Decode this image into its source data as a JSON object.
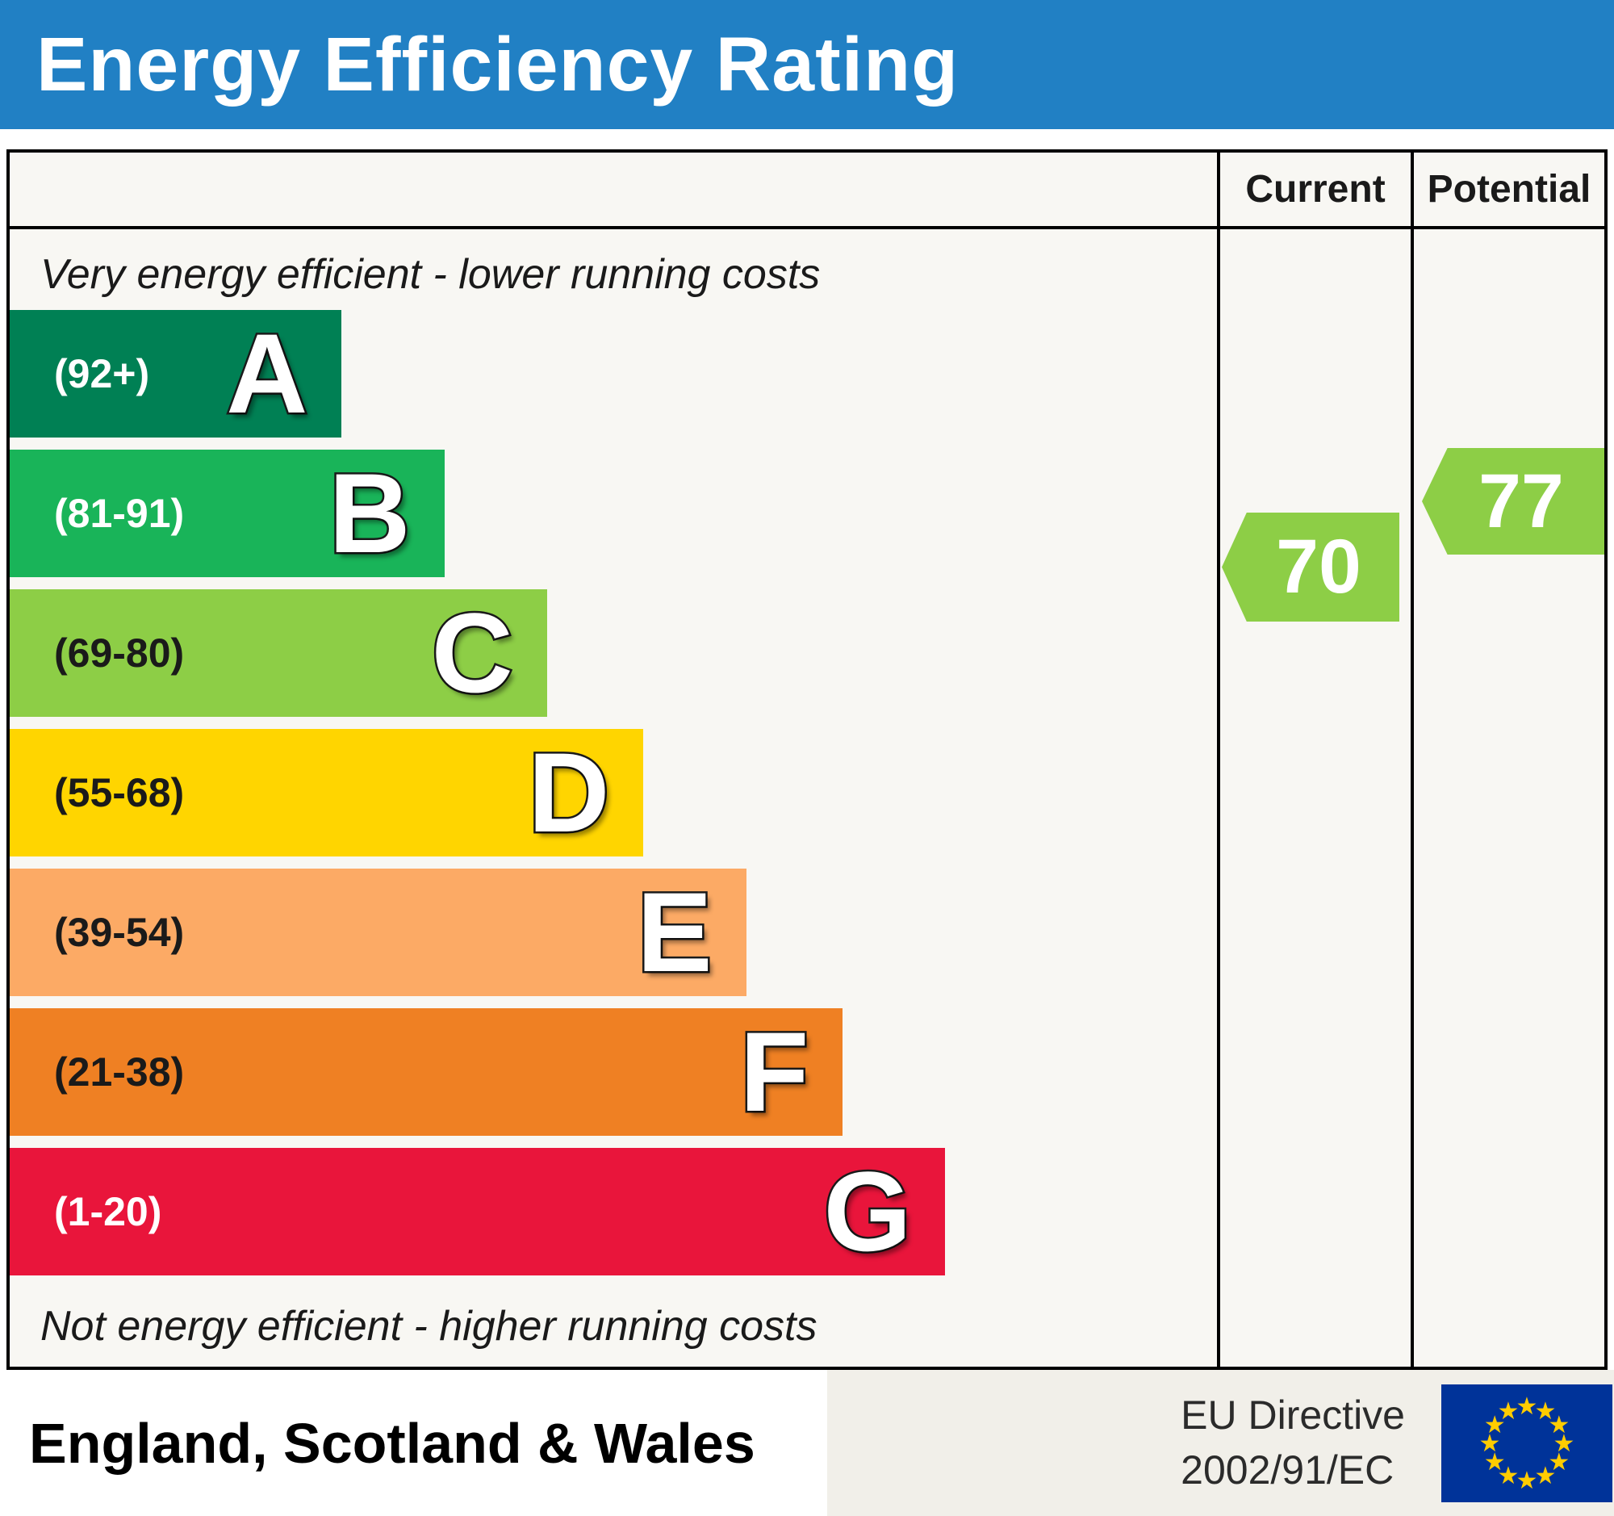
{
  "title": "Energy Efficiency Rating",
  "columns": {
    "current": "Current",
    "potential": "Potential"
  },
  "top_note": "Very energy efficient - lower running costs",
  "bottom_note": "Not energy efficient - higher running costs",
  "footer": {
    "region": "England, Scotland & Wales",
    "directive_line1": "EU Directive",
    "directive_line2": "2002/91/EC",
    "flag_bg": "#003399",
    "star_color": "#ffcc00"
  },
  "colors": {
    "header_bg": "#2180c4",
    "header_text": "#ffffff",
    "border": "#000000",
    "table_bg": "#f8f7f3"
  },
  "chart_data": {
    "type": "bar",
    "title": "Energy Efficiency Rating",
    "region": "England, Scotland & Wales",
    "categories": [
      "A",
      "B",
      "C",
      "D",
      "E",
      "F",
      "G"
    ],
    "bands": [
      {
        "letter": "A",
        "range": "(92+)",
        "min": 92,
        "max": 100,
        "color": "#008054",
        "text_color": "#ffffff",
        "width_pct": 27.5
      },
      {
        "letter": "B",
        "range": "(81-91)",
        "min": 81,
        "max": 91,
        "color": "#19b459",
        "text_color": "#ffffff",
        "width_pct": 36
      },
      {
        "letter": "C",
        "range": "(69-80)",
        "min": 69,
        "max": 80,
        "color": "#8dce46",
        "text_color": "#1a1a1a",
        "width_pct": 44.5
      },
      {
        "letter": "D",
        "range": "(55-68)",
        "min": 55,
        "max": 68,
        "color": "#ffd500",
        "text_color": "#1a1a1a",
        "width_pct": 52.5
      },
      {
        "letter": "E",
        "range": "(39-54)",
        "min": 39,
        "max": 54,
        "color": "#fcaa65",
        "text_color": "#1a1a1a",
        "width_pct": 61
      },
      {
        "letter": "F",
        "range": "(21-38)",
        "min": 21,
        "max": 38,
        "color": "#ef8023",
        "text_color": "#1a1a1a",
        "width_pct": 69
      },
      {
        "letter": "G",
        "range": "(1-20)",
        "min": 1,
        "max": 20,
        "color": "#e9153b",
        "text_color": "#ffffff",
        "width_pct": 77.5
      }
    ],
    "current": {
      "label": "Current",
      "value": 70,
      "band": "C",
      "color": "#8dce46"
    },
    "potential": {
      "label": "Potential",
      "value": 77,
      "band": "C",
      "color": "#8dce46"
    }
  }
}
